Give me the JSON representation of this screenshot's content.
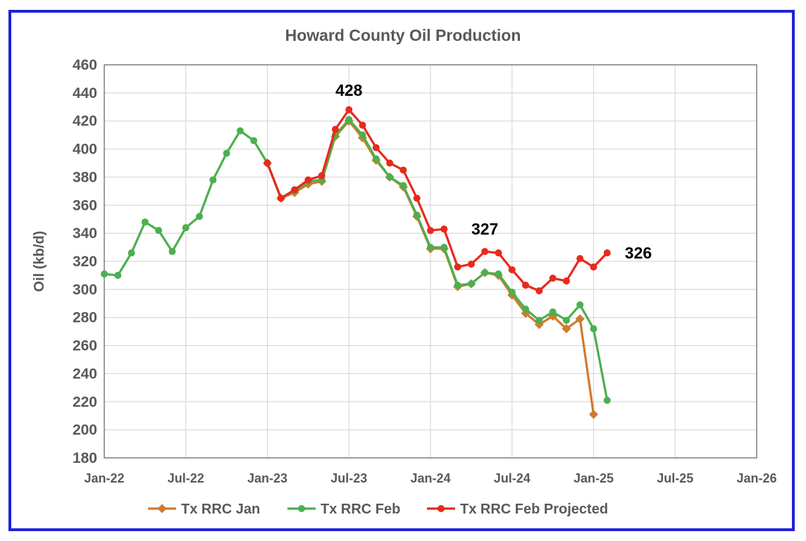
{
  "chart_data": {
    "type": "line",
    "title": "Howard County Oil Production",
    "ylabel": "Oil (kb/d)",
    "xlabel": "",
    "ylim": [
      180,
      460
    ],
    "yticks": [
      180,
      200,
      220,
      240,
      260,
      280,
      300,
      320,
      340,
      360,
      380,
      400,
      420,
      440,
      460
    ],
    "xlim": [
      "2022-01",
      "2026-01"
    ],
    "xtick_labels": [
      "Jan-22",
      "Jul-22",
      "Jan-23",
      "Jul-23",
      "Jan-24",
      "Jul-24",
      "Jan-25",
      "Jul-25",
      "Jan-26"
    ],
    "grid": "both",
    "legend_position": "bottom",
    "series": [
      {
        "name": "Tx RRC Jan",
        "color": "#d07a2d",
        "marker": "diamond",
        "points": [
          [
            "2023-01",
            390
          ],
          [
            "2023-02",
            365
          ],
          [
            "2023-03",
            369
          ],
          [
            "2023-04",
            375
          ],
          [
            "2023-05",
            377
          ],
          [
            "2023-06",
            409
          ],
          [
            "2023-07",
            420
          ],
          [
            "2023-08",
            408
          ],
          [
            "2023-09",
            392
          ],
          [
            "2023-10",
            380
          ],
          [
            "2023-11",
            373
          ],
          [
            "2023-12",
            352
          ],
          [
            "2024-01",
            329
          ],
          [
            "2024-02",
            329
          ],
          [
            "2024-03",
            302
          ],
          [
            "2024-04",
            304
          ],
          [
            "2024-05",
            312
          ],
          [
            "2024-06",
            310
          ],
          [
            "2024-07",
            296
          ],
          [
            "2024-08",
            283
          ],
          [
            "2024-09",
            275
          ],
          [
            "2024-10",
            281
          ],
          [
            "2024-11",
            272
          ],
          [
            "2024-12",
            279
          ],
          [
            "2025-01",
            211
          ]
        ]
      },
      {
        "name": "Tx RRC Feb",
        "color": "#4caf50",
        "marker": "circle",
        "points": [
          [
            "2022-01",
            311
          ],
          [
            "2022-02",
            310
          ],
          [
            "2022-03",
            326
          ],
          [
            "2022-04",
            348
          ],
          [
            "2022-05",
            342
          ],
          [
            "2022-06",
            327
          ],
          [
            "2022-07",
            344
          ],
          [
            "2022-08",
            352
          ],
          [
            "2022-09",
            378
          ],
          [
            "2022-10",
            397
          ],
          [
            "2022-11",
            413
          ],
          [
            "2022-12",
            406
          ],
          [
            "2023-01",
            390
          ],
          [
            "2023-02",
            365
          ],
          [
            "2023-03",
            370
          ],
          [
            "2023-04",
            377
          ],
          [
            "2023-05",
            378
          ],
          [
            "2023-06",
            410
          ],
          [
            "2023-07",
            421
          ],
          [
            "2023-08",
            410
          ],
          [
            "2023-09",
            393
          ],
          [
            "2023-10",
            380
          ],
          [
            "2023-11",
            374
          ],
          [
            "2023-12",
            353
          ],
          [
            "2024-01",
            330
          ],
          [
            "2024-02",
            330
          ],
          [
            "2024-03",
            303
          ],
          [
            "2024-04",
            304
          ],
          [
            "2024-05",
            312
          ],
          [
            "2024-06",
            311
          ],
          [
            "2024-07",
            298
          ],
          [
            "2024-08",
            286
          ],
          [
            "2024-09",
            278
          ],
          [
            "2024-10",
            284
          ],
          [
            "2024-11",
            278
          ],
          [
            "2024-12",
            289
          ],
          [
            "2025-01",
            272
          ],
          [
            "2025-02",
            221
          ]
        ]
      },
      {
        "name": "Tx RRC Feb Projected",
        "color": "#e8291c",
        "marker": "circle",
        "points": [
          [
            "2023-01",
            390
          ],
          [
            "2023-02",
            365
          ],
          [
            "2023-03",
            371
          ],
          [
            "2023-04",
            378
          ],
          [
            "2023-05",
            381
          ],
          [
            "2023-06",
            414
          ],
          [
            "2023-07",
            428
          ],
          [
            "2023-08",
            417
          ],
          [
            "2023-09",
            401
          ],
          [
            "2023-10",
            390
          ],
          [
            "2023-11",
            385
          ],
          [
            "2023-12",
            365
          ],
          [
            "2024-01",
            342
          ],
          [
            "2024-02",
            343
          ],
          [
            "2024-03",
            316
          ],
          [
            "2024-04",
            318
          ],
          [
            "2024-05",
            327
          ],
          [
            "2024-06",
            326
          ],
          [
            "2024-07",
            314
          ],
          [
            "2024-08",
            303
          ],
          [
            "2024-09",
            299
          ],
          [
            "2024-10",
            308
          ],
          [
            "2024-11",
            306
          ],
          [
            "2024-12",
            322
          ],
          [
            "2025-01",
            316
          ],
          [
            "2025-02",
            326
          ]
        ]
      }
    ],
    "annotations": [
      {
        "text": "428",
        "x": "2023-07",
        "y": 428
      },
      {
        "text": "327",
        "x": "2024-05",
        "y": 327
      },
      {
        "text": "326",
        "x": "2025-02",
        "y": 326
      }
    ]
  }
}
